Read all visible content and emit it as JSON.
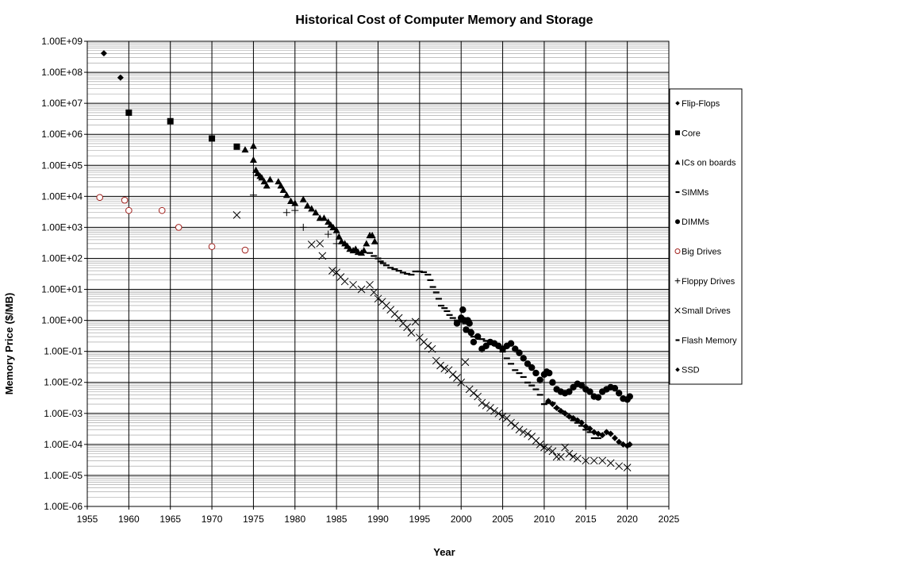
{
  "chart_data": {
    "type": "scatter",
    "title": "Historical Cost of Computer Memory and Storage",
    "xlabel": "Year",
    "ylabel": "Memory Price ($/MB)",
    "xlim": [
      1955,
      2025
    ],
    "ylim": [
      1e-06,
      1000000000.0
    ],
    "yscale": "log",
    "grid": true,
    "legend_position": "right",
    "x_ticks": [
      "1955",
      "1960",
      "1965",
      "1970",
      "1975",
      "1980",
      "1985",
      "1990",
      "1995",
      "2000",
      "2005",
      "2010",
      "2015",
      "2020",
      "2025"
    ],
    "y_ticks": [
      "1.00E+09",
      "1.00E+08",
      "1.00E+07",
      "1.00E+06",
      "1.00E+05",
      "1.00E+04",
      "1.00E+03",
      "1.00E+02",
      "1.00E+01",
      "1.00E+00",
      "1.00E-01",
      "1.00E-02",
      "1.00E-03",
      "1.00E-04",
      "1.00E-05",
      "1.00E-06"
    ],
    "series": [
      {
        "name": "Flip-Flops",
        "marker": "diamond",
        "x": [
          1957,
          1959
        ],
        "y": [
          411000000,
          67200000
        ]
      },
      {
        "name": "Core",
        "marker": "square",
        "x": [
          1960,
          1965,
          1970,
          1973
        ],
        "y": [
          5000000,
          2640000,
          734000,
          399000
        ]
      },
      {
        "name": "ICs on boards",
        "marker": "triangle",
        "x": [
          1974,
          1975,
          1975,
          1975.3,
          1975.5,
          1975.8,
          1976,
          1976.3,
          1976.6,
          1977,
          1978,
          1978.3,
          1978.6,
          1979,
          1979.5,
          1980,
          1981,
          1981.5,
          1982,
          1982.5,
          1983,
          1983.5,
          1984,
          1984.3,
          1984.6,
          1985,
          1985.3,
          1985.6,
          1986,
          1986.3,
          1986.6,
          1987,
          1987.3,
          1987.6,
          1988,
          1988.3,
          1988.6,
          1989,
          1989.3,
          1989.6
        ],
        "y": [
          320000,
          420000,
          150000,
          70000,
          55000,
          45000,
          40000,
          30000,
          22000,
          35000,
          30000,
          22000,
          16000,
          11000,
          7000,
          6000,
          8000,
          5000,
          4000,
          3000,
          2000,
          2000,
          1500,
          1200,
          1000,
          800,
          500,
          350,
          300,
          250,
          200,
          180,
          200,
          160,
          150,
          180,
          300,
          550,
          550,
          350
        ]
      },
      {
        "name": "SIMMs",
        "marker": "dash",
        "x": [
          1989,
          1989.5,
          1990,
          1990.3,
          1990.6,
          1991,
          1991.5,
          1992,
          1992.5,
          1993,
          1993.5,
          1994,
          1994.5,
          1995,
          1995.5,
          1996,
          1996.3,
          1996.6,
          1997,
          1997.3,
          1997.6,
          1998,
          1998.3,
          1998.6,
          1999,
          1999.5,
          2000,
          2000.5,
          2001,
          2001.5
        ],
        "y": [
          150,
          120,
          100,
          80,
          70,
          60,
          50,
          45,
          40,
          35,
          32,
          30,
          38,
          38,
          36,
          30,
          20,
          12,
          8,
          5,
          3,
          2.5,
          2,
          1.5,
          1.2,
          1.0,
          0.9,
          0.8,
          0.5,
          0.3
        ]
      },
      {
        "name": "DIMMs",
        "marker": "circle",
        "x": [
          1999.5,
          2000,
          2000.2,
          2000.4,
          2000.6,
          2000.8,
          2001,
          2001.2,
          2001.5,
          2002,
          2002.5,
          2003,
          2003.5,
          2004,
          2004.5,
          2005,
          2005.5,
          2006,
          2006.5,
          2007,
          2007.5,
          2008,
          2008.5,
          2009,
          2009.5,
          2010,
          2010.3,
          2010.6,
          2011,
          2011.5,
          2012,
          2012.5,
          2013,
          2013.5,
          2014,
          2014.5,
          2015,
          2015.5,
          2016,
          2016.5,
          2017,
          2017.5,
          2018,
          2018.5,
          2019,
          2019.5,
          2020,
          2020.3
        ],
        "y": [
          0.8,
          1.2,
          2.2,
          1.0,
          0.5,
          1.0,
          0.8,
          0.4,
          0.2,
          0.3,
          0.12,
          0.15,
          0.2,
          0.18,
          0.15,
          0.12,
          0.15,
          0.18,
          0.12,
          0.09,
          0.06,
          0.04,
          0.03,
          0.02,
          0.012,
          0.018,
          0.022,
          0.02,
          0.01,
          0.006,
          0.005,
          0.0045,
          0.005,
          0.007,
          0.009,
          0.008,
          0.006,
          0.005,
          0.0035,
          0.0033,
          0.005,
          0.006,
          0.007,
          0.0065,
          0.0045,
          0.003,
          0.0028,
          0.0035
        ]
      },
      {
        "name": "Big Drives",
        "marker": "open-circle",
        "x": [
          1956.5,
          1959.5,
          1960,
          1964,
          1966,
          1970,
          1974
        ],
        "y": [
          9200,
          7500,
          3500,
          3500,
          1000,
          240,
          185
        ]
      },
      {
        "name": "Floppy Drives",
        "marker": "plus",
        "x": [
          1975,
          1979,
          1980,
          1981,
          1984,
          1985
        ],
        "y": [
          11000,
          3000,
          3500,
          1000,
          600,
          300
        ]
      },
      {
        "name": "Small Drives",
        "marker": "x",
        "x": [
          1973,
          1982,
          1983,
          1983.3,
          1984.5,
          1985,
          1985.5,
          1986,
          1987,
          1988,
          1989,
          1989.5,
          1990,
          1990.5,
          1991,
          1991.5,
          1992,
          1992.5,
          1993,
          1993.5,
          1994,
          1994.5,
          1995,
          1995.5,
          1996,
          1996.5,
          1997,
          1997.5,
          1998,
          1998.5,
          1999,
          1999.5,
          2000,
          2000.5,
          2001,
          2001.5,
          2002,
          2002.5,
          2003,
          2003.5,
          2004,
          2004.5,
          2005,
          2005.5,
          2006,
          2006.5,
          2007,
          2007.5,
          2008,
          2008.5,
          2009,
          2009.5,
          2010,
          2010.5,
          2011,
          2011.5,
          2012,
          2012.5,
          2013,
          2013.5,
          2014,
          2015,
          2016,
          2017,
          2018,
          2019,
          2020
        ],
        "y": [
          2500,
          280,
          300,
          120,
          40,
          35,
          25,
          18,
          14,
          10,
          14,
          8,
          5,
          4,
          3,
          2.2,
          1.6,
          1.2,
          0.8,
          0.6,
          0.4,
          0.9,
          0.28,
          0.2,
          0.15,
          0.12,
          0.05,
          0.035,
          0.028,
          0.025,
          0.018,
          0.014,
          0.01,
          0.045,
          0.006,
          0.0045,
          0.0035,
          0.0022,
          0.0018,
          0.0015,
          0.0012,
          0.001,
          0.0008,
          0.0007,
          0.0005,
          0.0004,
          0.0003,
          0.00025,
          0.00022,
          0.00018,
          0.00013,
          0.0001,
          8e-05,
          7e-05,
          6e-05,
          4e-05,
          4e-05,
          8e-05,
          5e-05,
          4e-05,
          3.5e-05,
          3e-05,
          3e-05,
          3e-05,
          2.5e-05,
          2e-05,
          1.8e-05
        ]
      },
      {
        "name": "Flash Memory",
        "marker": "dash",
        "x": [
          2002.5,
          2003,
          2003.5,
          2004,
          2004.5,
          2005,
          2005.5,
          2006,
          2006.5,
          2007,
          2007.5,
          2008,
          2008.5,
          2009,
          2009.5,
          2010,
          2010.5,
          2011,
          2011.5,
          2012,
          2012.5,
          2013,
          2013.5,
          2014,
          2014.5,
          2015,
          2015.5,
          2016,
          2016.5
        ],
        "y": [
          0.25,
          0.22,
          0.2,
          0.18,
          0.15,
          0.1,
          0.06,
          0.04,
          0.025,
          0.02,
          0.015,
          0.01,
          0.008,
          0.006,
          0.004,
          0.002,
          0.0022,
          0.0022,
          0.0015,
          0.0012,
          0.001,
          0.0008,
          0.0006,
          0.0005,
          0.0004,
          0.0003,
          0.00025,
          0.00016,
          0.00016
        ]
      },
      {
        "name": "SSD",
        "marker": "diamond",
        "x": [
          2010.5,
          2011,
          2011.5,
          2012,
          2012.5,
          2013,
          2013.5,
          2014,
          2014.5,
          2015,
          2015.5,
          2016,
          2016.5,
          2017,
          2017.5,
          2018,
          2018.5,
          2019,
          2019.5,
          2020,
          2020.3
        ],
        "y": [
          0.0025,
          0.002,
          0.0015,
          0.0012,
          0.001,
          0.0008,
          0.0007,
          0.0006,
          0.0005,
          0.00038,
          0.00032,
          0.00025,
          0.00022,
          0.0002,
          0.00025,
          0.00022,
          0.00016,
          0.00012,
          0.0001,
          9e-05,
          0.0001
        ]
      }
    ]
  }
}
